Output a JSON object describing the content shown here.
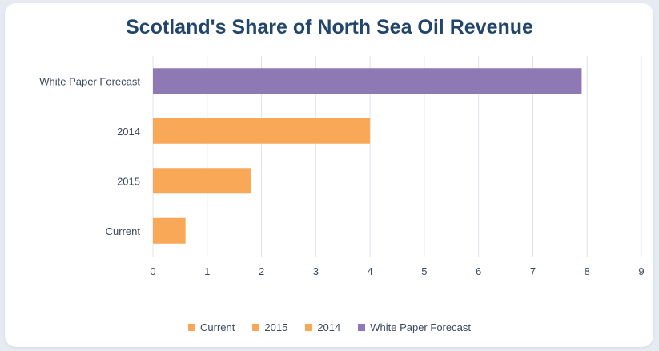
{
  "chart_data": {
    "type": "bar",
    "orientation": "horizontal",
    "title": "Scotland's Share of North Sea Oil Revenue",
    "categories": [
      "Current",
      "2015",
      "2014",
      "White Paper Forecast"
    ],
    "values": [
      0.6,
      1.8,
      4.0,
      7.9
    ],
    "bar_colors": [
      "#f9a857",
      "#f9a857",
      "#f9a857",
      "#8f79b4"
    ],
    "xlim": [
      0,
      9
    ],
    "x_ticks": [
      "0",
      "1",
      "2",
      "3",
      "4",
      "5",
      "6",
      "7",
      "8",
      "9"
    ],
    "grid": true,
    "legend_position": "bottom",
    "legend": [
      {
        "label": "Current",
        "color": "#f9a857"
      },
      {
        "label": "2015",
        "color": "#f9a857"
      },
      {
        "label": "2014",
        "color": "#f9a857"
      },
      {
        "label": "White Paper Forecast",
        "color": "#8f79b4"
      }
    ]
  },
  "colors": {
    "title": "#22456b",
    "axis_text": "#3b4a5e",
    "gridline": "#dde3ec"
  }
}
